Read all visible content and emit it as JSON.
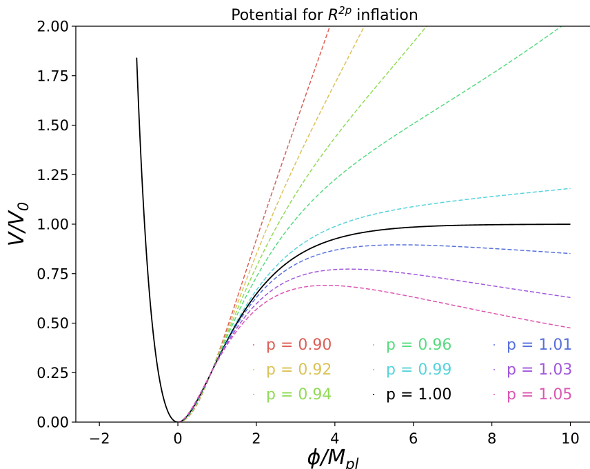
{
  "chart_data": {
    "type": "line",
    "title": "Potential for R^2p inflation",
    "title_parts": {
      "pre": "Potential for ",
      "base": "R",
      "sup": "2p",
      "post": " inflation"
    },
    "xlabel": "ϕ/M_pl",
    "xlabel_parts": {
      "base": "ϕ/M",
      "sub": "pl"
    },
    "ylabel": "V/V_0",
    "ylabel_parts": {
      "base": "V/V",
      "sub": "0"
    },
    "xlim": [
      -2.6,
      10.5
    ],
    "ylim": [
      0,
      2.0
    ],
    "xticks": [
      -2,
      0,
      2,
      4,
      6,
      8,
      10
    ],
    "xtick_labels": [
      "−2",
      "0",
      "2",
      "4",
      "6",
      "8",
      "10"
    ],
    "yticks": [
      0,
      0.25,
      0.5,
      0.75,
      1.0,
      1.25,
      1.5,
      1.75,
      2.0
    ],
    "ytick_labels": [
      "0.00",
      "0.25",
      "0.50",
      "0.75",
      "1.00",
      "1.25",
      "1.50",
      "1.75",
      "2.00"
    ],
    "grid": false,
    "legend_position": "lower-right",
    "legend_columns": 3,
    "series": [
      {
        "name": "p = 0.90",
        "p": 0.9,
        "color": "#db5f57",
        "style": "dashed"
      },
      {
        "name": "p = 0.92",
        "p": 0.92,
        "color": "#dbc257",
        "style": "dashed"
      },
      {
        "name": "p = 0.94",
        "p": 0.94,
        "color": "#91db57",
        "style": "dashed"
      },
      {
        "name": "p = 0.96",
        "p": 0.96,
        "color": "#57db80",
        "style": "dashed"
      },
      {
        "name": "p = 0.99",
        "p": 0.99,
        "color": "#57d3db",
        "style": "dashed"
      },
      {
        "name": "p = 1.00",
        "p": 1.0,
        "color": "#000000",
        "style": "solid"
      },
      {
        "name": "p = 1.01",
        "p": 1.01,
        "color": "#5770db",
        "style": "dashed"
      },
      {
        "name": "p = 1.03",
        "p": 1.03,
        "color": "#a157db",
        "style": "dashed"
      },
      {
        "name": "p = 1.05",
        "p": 1.05,
        "color": "#db57b2",
        "style": "dashed"
      }
    ]
  }
}
